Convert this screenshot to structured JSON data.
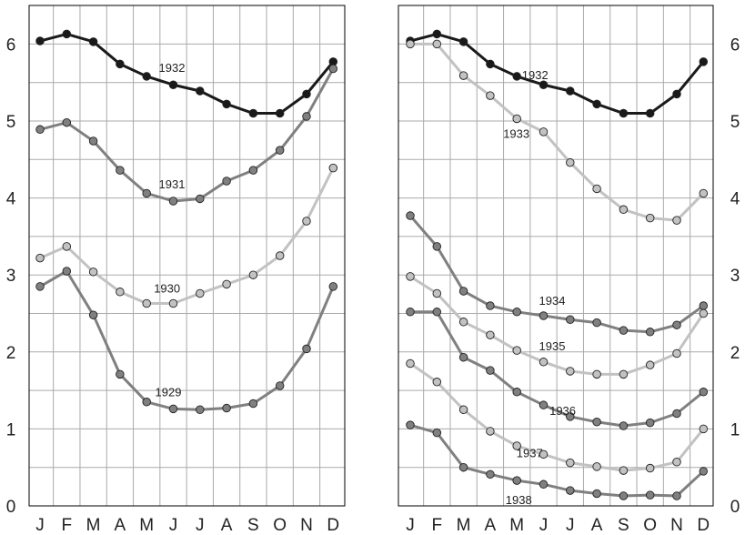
{
  "chart_data": [
    {
      "type": "line",
      "categories": [
        "J",
        "F",
        "M",
        "A",
        "M",
        "J",
        "J",
        "A",
        "S",
        "O",
        "N",
        "D"
      ],
      "yticks": [
        "0",
        "1",
        "2",
        "3",
        "4",
        "5",
        "6"
      ],
      "ylim": [
        0,
        6.5
      ],
      "grid": true,
      "series": [
        {
          "name": "1932",
          "color": "#1a1a1a",
          "values": [
            6.04,
            6.13,
            6.03,
            5.74,
            5.58,
            5.47,
            5.39,
            5.22,
            5.1,
            5.1,
            5.35,
            5.77
          ]
        },
        {
          "name": "1931",
          "color": "#808080",
          "values": [
            4.89,
            4.98,
            4.74,
            4.36,
            4.06,
            3.96,
            3.99,
            4.22,
            4.36,
            4.62,
            5.06,
            5.68
          ]
        },
        {
          "name": "1930",
          "color": "#c2c2c2",
          "values": [
            3.22,
            3.37,
            3.04,
            2.78,
            2.63,
            2.63,
            2.76,
            2.88,
            3.0,
            3.25,
            3.7,
            4.39
          ]
        },
        {
          "name": "1929",
          "color": "#808080",
          "values": [
            2.85,
            3.05,
            2.48,
            1.71,
            1.35,
            1.26,
            1.25,
            1.27,
            1.33,
            1.56,
            2.04,
            2.85
          ]
        }
      ]
    },
    {
      "type": "line",
      "categories": [
        "J",
        "F",
        "M",
        "A",
        "M",
        "J",
        "J",
        "A",
        "S",
        "O",
        "N",
        "D"
      ],
      "yticks": [
        "0",
        "1",
        "2",
        "3",
        "4",
        "5",
        "6"
      ],
      "ylim": [
        0,
        6.5
      ],
      "grid": true,
      "series": [
        {
          "name": "1932",
          "color": "#1a1a1a",
          "values": [
            6.04,
            6.13,
            6.03,
            5.74,
            5.58,
            5.47,
            5.39,
            5.22,
            5.1,
            5.1,
            5.35,
            5.77
          ]
        },
        {
          "name": "1933",
          "color": "#c2c2c2",
          "values": [
            6.0,
            6.0,
            5.59,
            5.33,
            5.03,
            4.86,
            4.46,
            4.12,
            3.85,
            3.74,
            3.71,
            4.06
          ]
        },
        {
          "name": "1934",
          "color": "#808080",
          "values": [
            3.77,
            3.37,
            2.79,
            2.6,
            2.52,
            2.47,
            2.42,
            2.38,
            2.28,
            2.26,
            2.35,
            2.6
          ]
        },
        {
          "name": "1935",
          "color": "#c2c2c2",
          "values": [
            2.98,
            2.76,
            2.39,
            2.22,
            2.02,
            1.87,
            1.75,
            1.71,
            1.71,
            1.83,
            1.98,
            2.5
          ]
        },
        {
          "name": "1936",
          "color": "#808080",
          "values": [
            2.52,
            2.52,
            1.93,
            1.76,
            1.48,
            1.31,
            1.16,
            1.09,
            1.04,
            1.08,
            1.2,
            1.48
          ]
        },
        {
          "name": "1937",
          "color": "#c2c2c2",
          "values": [
            1.85,
            1.61,
            1.25,
            0.97,
            0.78,
            0.67,
            0.56,
            0.51,
            0.46,
            0.49,
            0.57,
            1.0
          ]
        },
        {
          "name": "1938",
          "color": "#808080",
          "values": [
            1.05,
            0.95,
            0.5,
            0.41,
            0.33,
            0.28,
            0.2,
            0.16,
            0.13,
            0.14,
            0.13,
            0.45
          ]
        }
      ]
    }
  ]
}
